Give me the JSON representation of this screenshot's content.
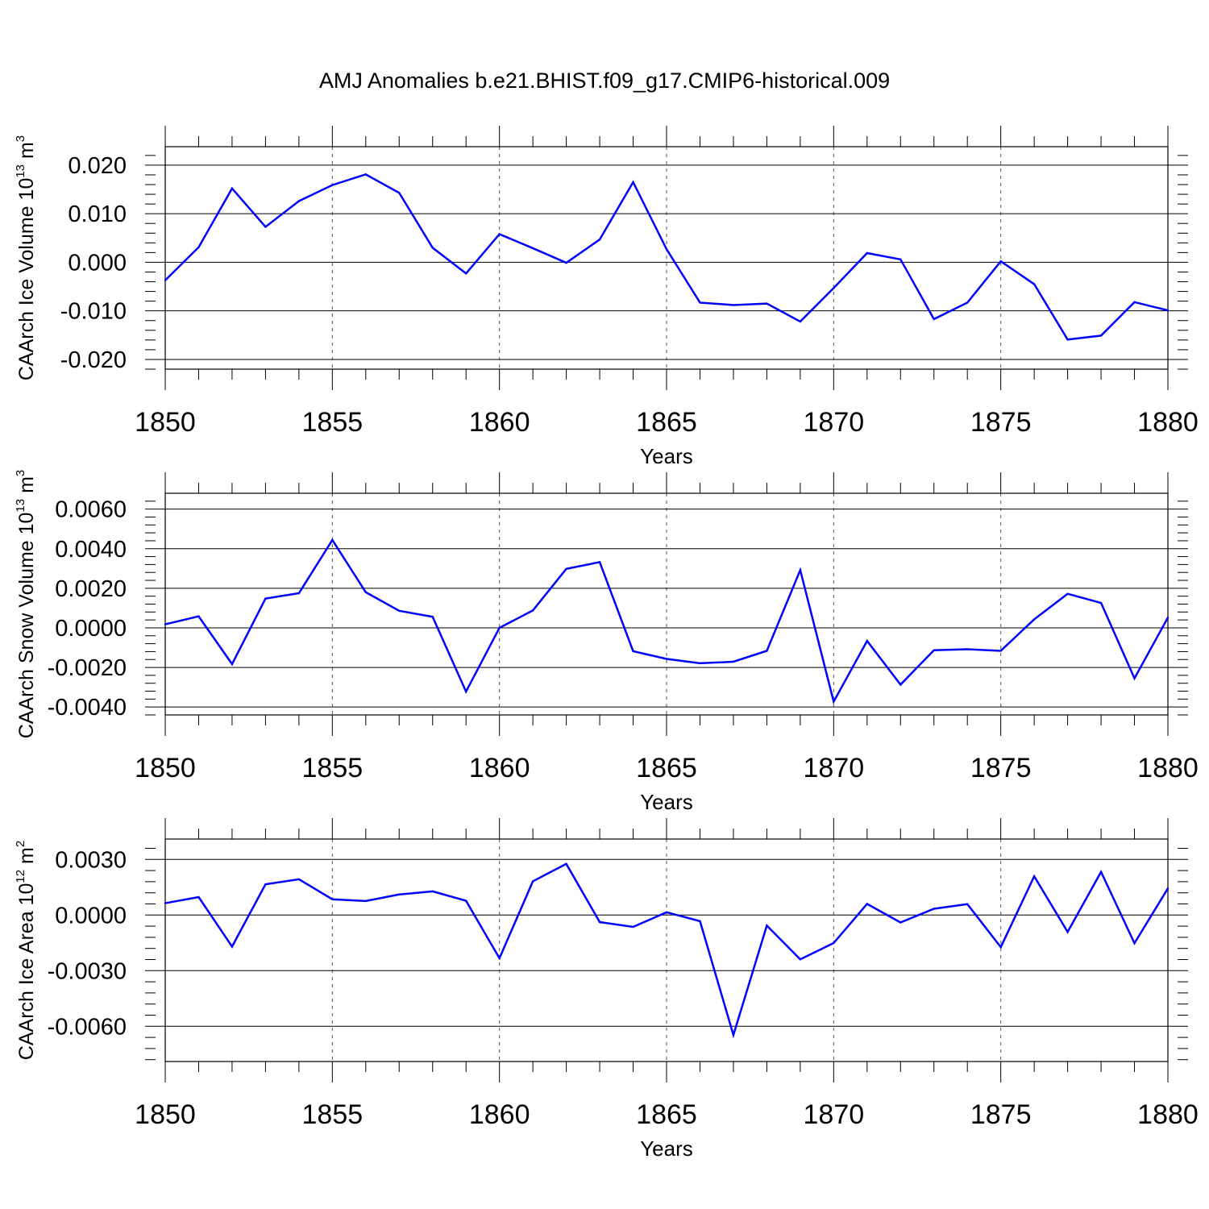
{
  "title": "AMJ Anomalies b.e21.BHIST.f09_g17.CMIP6-historical.009",
  "chart_data": [
    {
      "type": "line",
      "ylabel_text": "CAArch Ice Volume 10",
      "ylabel_exp": "13",
      "ylabel_unit": " m",
      "ylabel_unit_exp": "3",
      "xlabel": "Years",
      "xlim": [
        1850,
        1880
      ],
      "xticks": [
        "1850",
        "1855",
        "1860",
        "1865",
        "1870",
        "1875",
        "1880"
      ],
      "ylim": [
        -0.022,
        0.0238
      ],
      "yticks": [
        {
          "value": 0.02,
          "label": "0.020"
        },
        {
          "value": 0.01,
          "label": "0.010"
        },
        {
          "value": 0.0,
          "label": "0.000"
        },
        {
          "value": -0.01,
          "label": "-0.010"
        },
        {
          "value": -0.02,
          "label": "-0.020"
        }
      ],
      "line_color": "#0000ff",
      "grid": "dashed vertical at major ticks",
      "x": [
        1850,
        1851,
        1852,
        1853,
        1854,
        1855,
        1856,
        1857,
        1858,
        1859,
        1860,
        1861,
        1862,
        1863,
        1864,
        1865,
        1866,
        1867,
        1868,
        1869,
        1870,
        1871,
        1872,
        1873,
        1874,
        1875,
        1876,
        1877,
        1878,
        1879,
        1880
      ],
      "values": [
        -0.0037,
        0.0031,
        0.0152,
        0.0073,
        0.0126,
        0.0159,
        0.0181,
        0.0143,
        0.003,
        -0.0023,
        0.0058,
        0.0029,
        -0.0001,
        0.0047,
        0.0165,
        0.0027,
        -0.0083,
        -0.0088,
        -0.0085,
        -0.0122,
        -0.0053,
        0.0019,
        0.0006,
        -0.0117,
        -0.0083,
        0.0002,
        -0.0045,
        -0.0159,
        -0.0151,
        -0.0082,
        -0.0099
      ]
    },
    {
      "type": "line",
      "ylabel_text": "CAArch Snow Volume 10",
      "ylabel_exp": "13",
      "ylabel_unit": " m",
      "ylabel_unit_exp": "3",
      "xlabel": "Years",
      "xlim": [
        1850,
        1880
      ],
      "xticks": [
        "1850",
        "1855",
        "1860",
        "1865",
        "1870",
        "1875",
        "1880"
      ],
      "ylim": [
        -0.0044,
        0.0068
      ],
      "yticks": [
        {
          "value": 0.006,
          "label": "0.0060"
        },
        {
          "value": 0.004,
          "label": "0.0040"
        },
        {
          "value": 0.002,
          "label": "0.0020"
        },
        {
          "value": 0.0,
          "label": "0.0000"
        },
        {
          "value": -0.002,
          "label": "-0.0020"
        },
        {
          "value": -0.004,
          "label": "-0.0040"
        }
      ],
      "line_color": "#0000ff",
      "grid": "dashed vertical at major ticks",
      "x": [
        1850,
        1851,
        1852,
        1853,
        1854,
        1855,
        1856,
        1857,
        1858,
        1859,
        1860,
        1861,
        1862,
        1863,
        1864,
        1865,
        1866,
        1867,
        1868,
        1869,
        1870,
        1871,
        1872,
        1873,
        1874,
        1875,
        1876,
        1877,
        1878,
        1879,
        1880
      ],
      "values": [
        0.00018,
        0.00058,
        -0.00183,
        0.00148,
        0.00175,
        0.00444,
        0.0018,
        0.00086,
        0.00056,
        -0.00322,
        0.0,
        0.00088,
        0.00298,
        0.00332,
        -0.00118,
        -0.00157,
        -0.00179,
        -0.00171,
        -0.00116,
        0.00292,
        -0.00373,
        -0.00066,
        -0.00287,
        -0.00113,
        -0.00108,
        -0.00116,
        0.00043,
        0.00172,
        0.00126,
        -0.00255,
        0.00052
      ]
    },
    {
      "type": "line",
      "ylabel_text": "CAArch Ice Area 10",
      "ylabel_exp": "12",
      "ylabel_unit": " m",
      "ylabel_unit_exp": "2",
      "xlabel": "Years",
      "xlim": [
        1850,
        1880
      ],
      "xticks": [
        "1850",
        "1855",
        "1860",
        "1865",
        "1870",
        "1875",
        "1880"
      ],
      "ylim": [
        -0.0079,
        0.0041
      ],
      "yticks": [
        {
          "value": 0.003,
          "label": "0.0030"
        },
        {
          "value": 0.0,
          "label": "0.0000"
        },
        {
          "value": -0.003,
          "label": "-0.0030"
        },
        {
          "value": -0.006,
          "label": "-0.0060"
        }
      ],
      "line_color": "#0000ff",
      "grid": "dashed vertical at major ticks",
      "x": [
        1850,
        1851,
        1852,
        1853,
        1854,
        1855,
        1856,
        1857,
        1858,
        1859,
        1860,
        1861,
        1862,
        1863,
        1864,
        1865,
        1866,
        1867,
        1868,
        1869,
        1870,
        1871,
        1872,
        1873,
        1874,
        1875,
        1876,
        1877,
        1878,
        1879,
        1880
      ],
      "values": [
        0.00064,
        0.00097,
        -0.0017,
        0.00166,
        0.00193,
        0.00085,
        0.00076,
        0.00111,
        0.00128,
        0.00077,
        -0.00233,
        0.00182,
        0.00276,
        -0.00038,
        -0.00064,
        0.00015,
        -0.00033,
        -0.00647,
        -0.00057,
        -0.00239,
        -0.00151,
        0.0006,
        -0.0004,
        0.00034,
        0.00059,
        -0.00173,
        0.00209,
        -0.00091,
        0.00233,
        -0.00152,
        0.00144
      ]
    }
  ]
}
